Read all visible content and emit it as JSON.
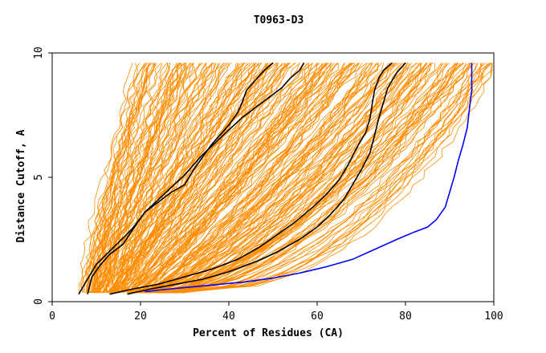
{
  "chart_data": {
    "type": "line",
    "title": "T0963-D3",
    "xlabel": "Percent of Residues (CA)",
    "ylabel": "Distance Cutoff, A",
    "xlim": [
      0,
      100
    ],
    "ylim": [
      0,
      10
    ],
    "xticks": [
      "0",
      "20",
      "40",
      "60",
      "80",
      "100"
    ],
    "yticks": [
      "0",
      "5",
      "10"
    ],
    "grid": false,
    "legend": "none",
    "colors": {
      "background_series": "#ff8c00",
      "highlight_black": "#000000",
      "highlight_blue": "#0000ff"
    },
    "series": [
      {
        "color": "#000000",
        "x": [
          8,
          9,
          11,
          13,
          16,
          19,
          21,
          24,
          27,
          30,
          32,
          34,
          36,
          38,
          40,
          42,
          43,
          44,
          46,
          48,
          50
        ],
        "y": [
          0.3,
          1,
          1.5,
          1.9,
          2.3,
          3.1,
          3.6,
          4.0,
          4.4,
          4.7,
          5.3,
          5.8,
          6.3,
          6.7,
          7.1,
          7.6,
          8.0,
          8.5,
          8.9,
          9.3,
          9.6
        ]
      },
      {
        "color": "#000000",
        "x": [
          6,
          8,
          10,
          14,
          18,
          21,
          24,
          27,
          30,
          32,
          34,
          37,
          40,
          43,
          46,
          49,
          52,
          54,
          56,
          57
        ],
        "y": [
          0.3,
          0.9,
          1.5,
          2.2,
          2.9,
          3.6,
          4.1,
          4.6,
          5.1,
          5.5,
          5.9,
          6.4,
          6.9,
          7.4,
          7.8,
          8.2,
          8.6,
          9.0,
          9.3,
          9.6
        ]
      },
      {
        "color": "#000000",
        "x": [
          13,
          18,
          24,
          30,
          36,
          42,
          47,
          51,
          55,
          59,
          62,
          65,
          67,
          69,
          71,
          72,
          72.5,
          73,
          74,
          75,
          77
        ],
        "y": [
          0.3,
          0.5,
          0.7,
          1.0,
          1.3,
          1.7,
          2.2,
          2.7,
          3.2,
          3.8,
          4.3,
          4.9,
          5.5,
          6.2,
          6.8,
          7.4,
          8.0,
          8.5,
          9.0,
          9.3,
          9.6
        ]
      },
      {
        "color": "#000000",
        "x": [
          17,
          22,
          28,
          34,
          40,
          46,
          51,
          56,
          60,
          63,
          66,
          68,
          70,
          72,
          73,
          74,
          75,
          76,
          78,
          80
        ],
        "y": [
          0.3,
          0.5,
          0.7,
          0.9,
          1.2,
          1.6,
          2.0,
          2.5,
          3.0,
          3.5,
          4.1,
          4.7,
          5.3,
          6.0,
          6.7,
          7.4,
          8.0,
          8.6,
          9.2,
          9.6
        ]
      },
      {
        "color": "#0000ff",
        "x": [
          21,
          26,
          32,
          38,
          44,
          50,
          56,
          62,
          68,
          73,
          78,
          82,
          85,
          87,
          89,
          90,
          91,
          92,
          93,
          94,
          94.5,
          95,
          95
        ],
        "y": [
          0.4,
          0.5,
          0.6,
          0.7,
          0.8,
          0.95,
          1.15,
          1.4,
          1.7,
          2.1,
          2.5,
          2.8,
          3.0,
          3.3,
          3.8,
          4.4,
          5.0,
          5.7,
          6.3,
          7.0,
          7.8,
          8.5,
          9.6
        ]
      }
    ]
  }
}
